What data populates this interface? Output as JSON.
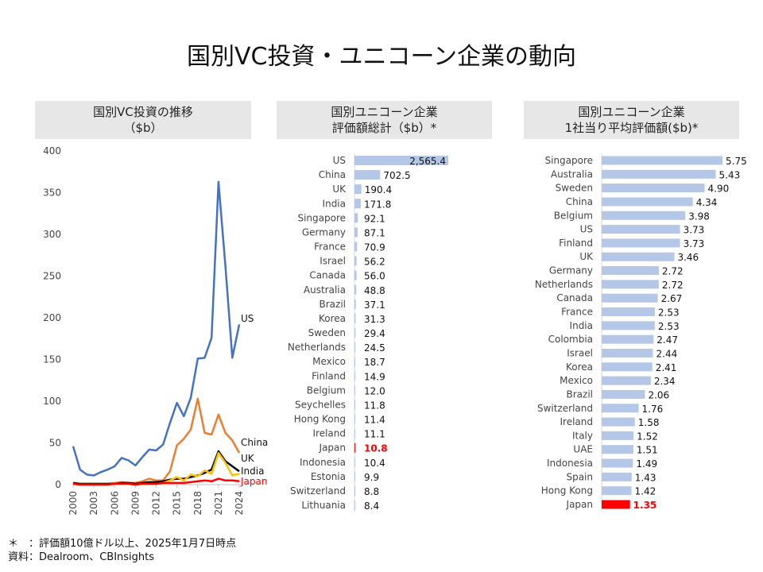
{
  "title": "国別VC投資・ユニコーン企業の動向",
  "panels": {
    "p1_line1": "国別VC投資の推移",
    "p1_line2": "（$b）",
    "p2_line1": "国別ユニコーン企業",
    "p2_line2": "評価額総計（$b）*",
    "p3_line1": "国別ユニコーン企業",
    "p3_line2": "1社当り平均評価額($b)*"
  },
  "notes": {
    "line1": "＊　：評価額10億ドル以上、2025年1月7日時点",
    "line2": "資料：Dealroom、CBInsights"
  },
  "colors": {
    "US": "#4472c4",
    "China": "#ed7d31",
    "UK": "#000000",
    "India": "#ffc000",
    "Japan": "#ff0000",
    "bar": "#b4c7e7",
    "highlight": "#ff0000"
  },
  "chart_data": [
    {
      "type": "line",
      "title": "国別VC投資の推移（$b）",
      "x": [
        2000,
        2001,
        2002,
        2003,
        2004,
        2005,
        2006,
        2007,
        2008,
        2009,
        2010,
        2011,
        2012,
        2013,
        2014,
        2015,
        2016,
        2017,
        2018,
        2019,
        2020,
        2021,
        2022,
        2023,
        2024
      ],
      "x_tick_labels": [
        "2000",
        "2003",
        "2006",
        "2009",
        "2012",
        "2015",
        "2018",
        "2021",
        "2024"
      ],
      "ylim": [
        0,
        400
      ],
      "y_ticks": [
        0,
        50,
        100,
        150,
        200,
        250,
        300,
        350,
        400
      ],
      "series": [
        {
          "name": "US",
          "values": [
            46,
            18,
            12,
            11,
            15,
            18,
            22,
            32,
            29,
            23,
            33,
            42,
            41,
            48,
            74,
            98,
            82,
            104,
            151,
            152,
            176,
            363,
            262,
            152,
            192
          ]
        },
        {
          "name": "China",
          "values": [
            1,
            1,
            1,
            1,
            1,
            1,
            2,
            3,
            2,
            2,
            4,
            7,
            5,
            5,
            16,
            47,
            55,
            66,
            103,
            62,
            60,
            84,
            62,
            53,
            38
          ]
        },
        {
          "name": "UK",
          "values": [
            2,
            1,
            1,
            1,
            1,
            1,
            1,
            2,
            2,
            1,
            2,
            3,
            3,
            4,
            6,
            7,
            7,
            9,
            11,
            14,
            18,
            40,
            28,
            22,
            16
          ]
        },
        {
          "name": "India",
          "values": [
            1,
            0,
            0,
            0,
            0,
            0,
            1,
            1,
            1,
            0,
            1,
            1,
            1,
            2,
            5,
            9,
            5,
            12,
            10,
            17,
            13,
            38,
            26,
            11,
            13
          ]
        },
        {
          "name": "Japan",
          "values": [
            1,
            0,
            0,
            0,
            0,
            0,
            1,
            1,
            1,
            0,
            1,
            1,
            1,
            2,
            2,
            2,
            2,
            3,
            4,
            5,
            4,
            7,
            5,
            5,
            4
          ]
        }
      ]
    },
    {
      "type": "bar",
      "title": "国別ユニコーン企業 評価額総計（$b）*",
      "categories": [
        "US",
        "China",
        "UK",
        "India",
        "Singapore",
        "Germany",
        "France",
        "Israel",
        "Canada",
        "Australia",
        "Brazil",
        "Korea",
        "Sweden",
        "Netherlands",
        "Mexico",
        "Finland",
        "Belgium",
        "Seychelles",
        "Hong Kong",
        "Ireland",
        "Japan",
        "Indonesia",
        "Estonia",
        "Switzerland",
        "Lithuania"
      ],
      "values": [
        2565.4,
        702.5,
        190.4,
        171.8,
        92.1,
        87.1,
        70.9,
        56.2,
        56.0,
        48.8,
        37.1,
        31.3,
        29.4,
        24.5,
        18.7,
        14.9,
        12.0,
        11.8,
        11.4,
        11.1,
        10.8,
        10.4,
        9.9,
        8.8,
        8.4
      ],
      "value_labels": [
        "2,565.4",
        "702.5",
        "190.4",
        "171.8",
        "92.1",
        "87.1",
        "70.9",
        "56.2",
        "56.0",
        "48.8",
        "37.1",
        "31.3",
        "29.4",
        "24.5",
        "18.7",
        "14.9",
        "12.0",
        "11.8",
        "11.4",
        "11.1",
        "10.8",
        "10.4",
        "9.9",
        "8.8",
        "8.4"
      ],
      "highlight": "Japan"
    },
    {
      "type": "bar",
      "title": "国別ユニコーン企業 1社当り平均評価額($b)*",
      "categories": [
        "Singapore",
        "Australia",
        "Sweden",
        "China",
        "Belgium",
        "US",
        "Finland",
        "UK",
        "Germany",
        "Netherlands",
        "Canada",
        "France",
        "India",
        "Colombia",
        "Israel",
        "Korea",
        "Mexico",
        "Brazil",
        "Switzerland",
        "Ireland",
        "Italy",
        "UAE",
        "Indonesia",
        "Spain",
        "Hong Kong",
        "Japan"
      ],
      "values": [
        5.75,
        5.43,
        4.9,
        4.34,
        3.98,
        3.73,
        3.73,
        3.46,
        2.72,
        2.72,
        2.67,
        2.53,
        2.53,
        2.47,
        2.44,
        2.41,
        2.34,
        2.06,
        1.76,
        1.58,
        1.52,
        1.51,
        1.49,
        1.43,
        1.42,
        1.35
      ],
      "value_labels": [
        "5.75",
        "5.43",
        "4.90",
        "4.34",
        "3.98",
        "3.73",
        "3.73",
        "3.46",
        "2.72",
        "2.72",
        "2.67",
        "2.53",
        "2.53",
        "2.47",
        "2.44",
        "2.41",
        "2.34",
        "2.06",
        "1.76",
        "1.58",
        "1.52",
        "1.51",
        "1.49",
        "1.43",
        "1.42",
        "1.35"
      ],
      "highlight": "Japan"
    }
  ]
}
